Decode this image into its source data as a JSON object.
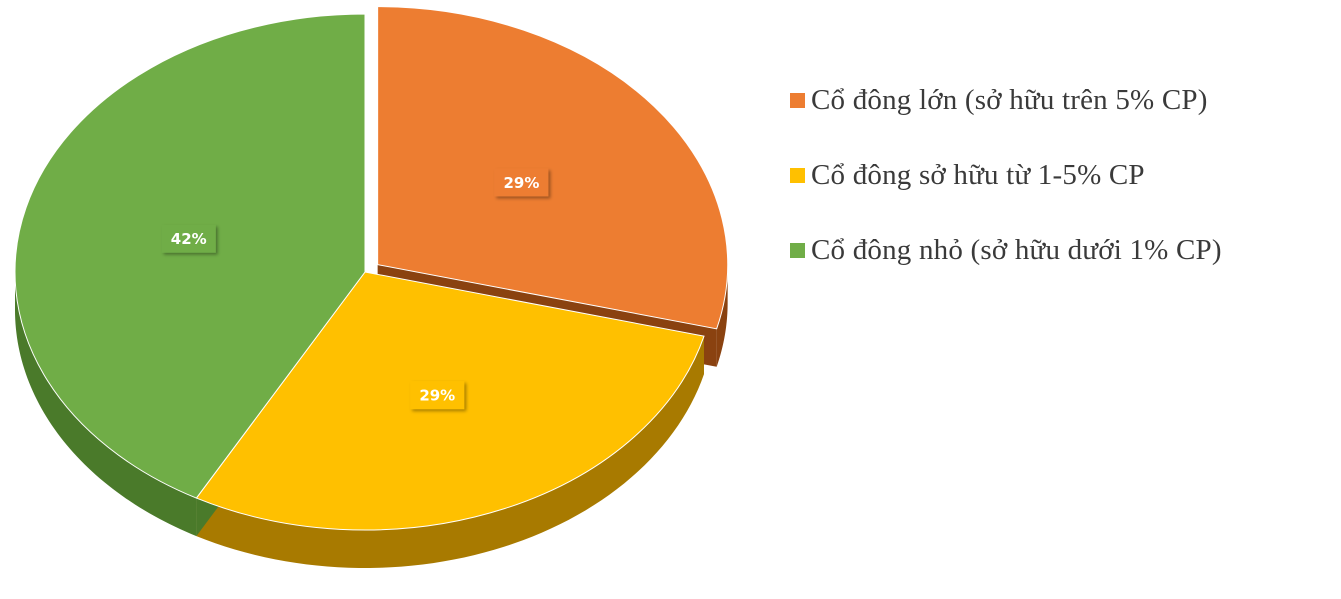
{
  "chart_data": {
    "type": "pie",
    "style": "3d-exploded",
    "start_angle_deg": 0,
    "direction": "clockwise",
    "title": "",
    "slices": [
      {
        "label": "Cổ đông lớn (sở hữu trên 5% CP)",
        "value": 29,
        "data_label": "29%",
        "color": "#ED7D31",
        "side_color": "#8A4210",
        "exploded": true
      },
      {
        "label": "Cổ đông sở hữu từ 1-5% CP",
        "value": 29,
        "data_label": "29%",
        "color": "#FFC000",
        "side_color": "#A87A00",
        "exploded": false
      },
      {
        "label": "Cổ đông nhỏ (sở hữu dưới 1% CP)",
        "value": 42,
        "data_label": "42%",
        "color": "#70AD47",
        "side_color": "#4A7A2A",
        "exploded": false
      }
    ],
    "legend": {
      "position": "right"
    }
  }
}
